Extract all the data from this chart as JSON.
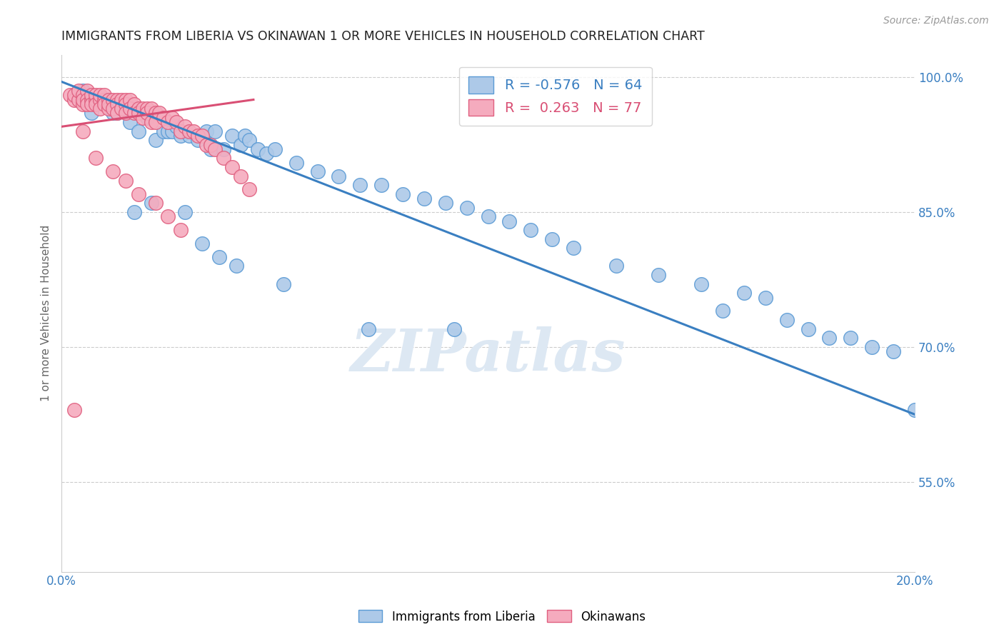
{
  "title": "IMMIGRANTS FROM LIBERIA VS OKINAWAN 1 OR MORE VEHICLES IN HOUSEHOLD CORRELATION CHART",
  "source": "Source: ZipAtlas.com",
  "ylabel": "1 or more Vehicles in Household",
  "xlim": [
    0.0,
    0.2
  ],
  "ylim": [
    0.45,
    1.025
  ],
  "yticks": [
    0.55,
    0.7,
    0.85,
    1.0
  ],
  "ytick_labels": [
    "55.0%",
    "70.0%",
    "85.0%",
    "100.0%"
  ],
  "xticks": [
    0.0,
    0.04,
    0.08,
    0.12,
    0.16,
    0.2
  ],
  "xtick_labels": [
    "0.0%",
    "",
    "",
    "",
    "",
    "20.0%"
  ],
  "legend_r1": "R = -0.576",
  "legend_n1": "N = 64",
  "legend_r2": "R =  0.263",
  "legend_n2": "N = 77",
  "blue_color": "#adc9e8",
  "pink_color": "#f5abbe",
  "blue_edge_color": "#5b9bd5",
  "pink_edge_color": "#e06080",
  "blue_line_color": "#3a7fc1",
  "pink_line_color": "#d94f74",
  "watermark": "ZIPatlas",
  "blue_line_x0": 0.0,
  "blue_line_y0": 0.995,
  "blue_line_x1": 0.2,
  "blue_line_y1": 0.625,
  "pink_line_x0": 0.0,
  "pink_line_y0": 0.945,
  "pink_line_x1": 0.045,
  "pink_line_y1": 0.975,
  "blue_scatter_x": [
    0.005,
    0.007,
    0.01,
    0.012,
    0.013,
    0.015,
    0.016,
    0.018,
    0.02,
    0.022,
    0.024,
    0.025,
    0.026,
    0.027,
    0.028,
    0.03,
    0.032,
    0.034,
    0.035,
    0.036,
    0.038,
    0.04,
    0.042,
    0.043,
    0.044,
    0.046,
    0.048,
    0.05,
    0.055,
    0.06,
    0.065,
    0.07,
    0.075,
    0.08,
    0.085,
    0.09,
    0.095,
    0.1,
    0.105,
    0.11,
    0.115,
    0.12,
    0.13,
    0.14,
    0.15,
    0.155,
    0.16,
    0.165,
    0.17,
    0.175,
    0.18,
    0.185,
    0.19,
    0.195,
    0.2,
    0.017,
    0.021,
    0.029,
    0.033,
    0.037,
    0.041,
    0.052,
    0.072,
    0.092
  ],
  "blue_scatter_y": [
    0.985,
    0.96,
    0.975,
    0.96,
    0.96,
    0.965,
    0.95,
    0.94,
    0.955,
    0.93,
    0.94,
    0.94,
    0.94,
    0.945,
    0.935,
    0.935,
    0.93,
    0.94,
    0.92,
    0.94,
    0.92,
    0.935,
    0.925,
    0.935,
    0.93,
    0.92,
    0.915,
    0.92,
    0.905,
    0.895,
    0.89,
    0.88,
    0.88,
    0.87,
    0.865,
    0.86,
    0.855,
    0.845,
    0.84,
    0.83,
    0.82,
    0.81,
    0.79,
    0.78,
    0.77,
    0.74,
    0.76,
    0.755,
    0.73,
    0.72,
    0.71,
    0.71,
    0.7,
    0.695,
    0.63,
    0.85,
    0.86,
    0.85,
    0.815,
    0.8,
    0.79,
    0.77,
    0.72,
    0.72
  ],
  "pink_scatter_x": [
    0.002,
    0.003,
    0.003,
    0.004,
    0.004,
    0.005,
    0.005,
    0.005,
    0.006,
    0.006,
    0.006,
    0.007,
    0.007,
    0.007,
    0.008,
    0.008,
    0.008,
    0.009,
    0.009,
    0.009,
    0.01,
    0.01,
    0.01,
    0.011,
    0.011,
    0.011,
    0.012,
    0.012,
    0.013,
    0.013,
    0.013,
    0.014,
    0.014,
    0.015,
    0.015,
    0.015,
    0.016,
    0.016,
    0.017,
    0.017,
    0.018,
    0.018,
    0.019,
    0.019,
    0.02,
    0.02,
    0.021,
    0.021,
    0.022,
    0.022,
    0.023,
    0.024,
    0.025,
    0.026,
    0.027,
    0.028,
    0.029,
    0.03,
    0.031,
    0.032,
    0.033,
    0.034,
    0.035,
    0.036,
    0.038,
    0.04,
    0.042,
    0.044,
    0.005,
    0.008,
    0.012,
    0.015,
    0.018,
    0.022,
    0.025,
    0.003,
    0.028
  ],
  "pink_scatter_y": [
    0.98,
    0.975,
    0.98,
    0.975,
    0.985,
    0.98,
    0.97,
    0.975,
    0.985,
    0.975,
    0.97,
    0.975,
    0.98,
    0.97,
    0.975,
    0.98,
    0.97,
    0.975,
    0.98,
    0.965,
    0.975,
    0.98,
    0.97,
    0.975,
    0.965,
    0.97,
    0.975,
    0.965,
    0.975,
    0.97,
    0.96,
    0.975,
    0.965,
    0.975,
    0.97,
    0.96,
    0.975,
    0.965,
    0.97,
    0.96,
    0.965,
    0.96,
    0.965,
    0.955,
    0.965,
    0.96,
    0.965,
    0.95,
    0.96,
    0.95,
    0.96,
    0.955,
    0.95,
    0.955,
    0.95,
    0.94,
    0.945,
    0.94,
    0.94,
    0.935,
    0.935,
    0.925,
    0.925,
    0.92,
    0.91,
    0.9,
    0.89,
    0.875,
    0.94,
    0.91,
    0.895,
    0.885,
    0.87,
    0.86,
    0.845,
    0.63,
    0.83
  ]
}
